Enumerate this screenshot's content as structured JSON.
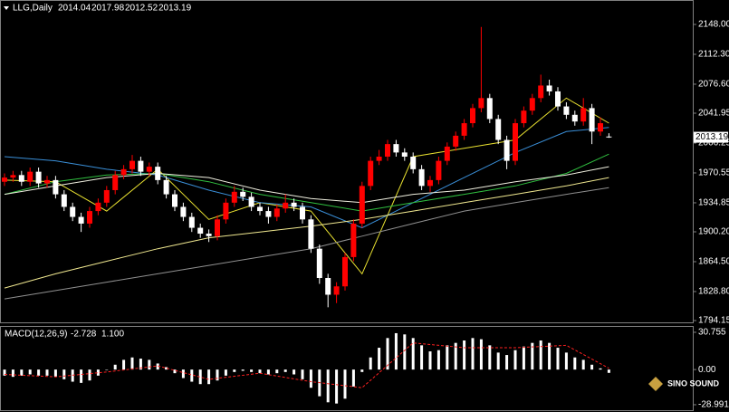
{
  "chart_data": [
    {
      "type": "candlestick",
      "title": "LLG,Daily",
      "up_color": "#ff0000",
      "down_color": "#ffffff",
      "open": [
        1960,
        1965,
        1968,
        1960,
        1972,
        1958,
        1962,
        1945,
        1930,
        1918,
        1910,
        1925,
        1935,
        1950,
        1968,
        1975,
        1985,
        1972,
        1978,
        1962,
        1945,
        1930,
        1918,
        1905,
        1898,
        1895,
        1915,
        1935,
        1948,
        1942,
        1930,
        1925,
        1918,
        1928,
        1935,
        1930,
        1915,
        1880,
        1845,
        1825,
        1835,
        1870,
        1910,
        1955,
        1985,
        1990,
        2005,
        1995,
        1990,
        1975,
        1955,
        1962,
        1985,
        2002,
        2015,
        2030,
        2048,
        2060,
        2035,
        2010,
        1985,
        2030,
        2045,
        2060,
        2075,
        2068,
        2050,
        2040,
        2032,
        2048,
        2020,
        2014.04
      ],
      "high": [
        1970,
        1973,
        1973,
        1977,
        1977,
        1967,
        1967,
        1950,
        1935,
        1923,
        1930,
        1940,
        1955,
        1973,
        1980,
        1992,
        1990,
        1983,
        1983,
        1967,
        1950,
        1935,
        1923,
        1910,
        1903,
        1920,
        1940,
        1955,
        1953,
        1947,
        1935,
        1930,
        1933,
        1945,
        1940,
        1935,
        1920,
        1885,
        1850,
        1840,
        1875,
        1915,
        1960,
        1990,
        1998,
        2010,
        2010,
        2000,
        1995,
        1980,
        1967,
        1990,
        2007,
        2020,
        2035,
        2053,
        2145,
        2065,
        2040,
        2015,
        2035,
        2050,
        2065,
        2088,
        2082,
        2073,
        2055,
        2045,
        2060,
        2053,
        2037,
        2017.98
      ],
      "low": [
        1955,
        1960,
        1955,
        1955,
        1953,
        1953,
        1940,
        1925,
        1913,
        1900,
        1905,
        1920,
        1930,
        1945,
        1963,
        1970,
        1967,
        1967,
        1957,
        1940,
        1925,
        1913,
        1900,
        1893,
        1888,
        1890,
        1910,
        1930,
        1937,
        1925,
        1920,
        1910,
        1913,
        1923,
        1925,
        1910,
        1875,
        1838,
        1810,
        1815,
        1830,
        1865,
        1905,
        1950,
        1980,
        1985,
        1990,
        1985,
        1970,
        1950,
        1948,
        1957,
        1980,
        1997,
        2010,
        2025,
        2043,
        2030,
        2005,
        1975,
        1980,
        2025,
        2040,
        2055,
        2063,
        2045,
        2035,
        2027,
        2027,
        2005,
        2015,
        2012.52
      ],
      "close": [
        1965,
        1968,
        1960,
        1972,
        1958,
        1962,
        1945,
        1930,
        1918,
        1910,
        1925,
        1935,
        1950,
        1968,
        1975,
        1985,
        1972,
        1978,
        1962,
        1945,
        1930,
        1918,
        1905,
        1898,
        1895,
        1915,
        1935,
        1948,
        1942,
        1930,
        1925,
        1918,
        1928,
        1935,
        1930,
        1915,
        1880,
        1845,
        1825,
        1835,
        1870,
        1910,
        1955,
        1985,
        1990,
        2005,
        1995,
        1990,
        1975,
        1955,
        1962,
        1985,
        2002,
        2015,
        2030,
        2048,
        2060,
        2035,
        2010,
        1985,
        2030,
        2045,
        2060,
        2075,
        2068,
        2050,
        2040,
        2032,
        2048,
        2020,
        2030,
        2013.19
      ],
      "ma_x": [
        0,
        6,
        12,
        18,
        24,
        30,
        36,
        42,
        48,
        54,
        60,
        66,
        71
      ],
      "ma_series": [
        {
          "color": "#e8e030",
          "values": [
            1962,
            1960,
            1925,
            1975,
            1915,
            1935,
            1925,
            1850,
            1990,
            2000,
            2010,
            2060,
            2030
          ]
        },
        {
          "color": "#3a8fd8",
          "values": [
            1990,
            1985,
            1975,
            1968,
            1950,
            1935,
            1930,
            1905,
            1935,
            1965,
            1995,
            2020,
            2025
          ]
        },
        {
          "color": "#30c040",
          "values": [
            1945,
            1960,
            1968,
            1970,
            1960,
            1945,
            1935,
            1925,
            1935,
            1945,
            1955,
            1970,
            1993
          ]
        },
        {
          "color": "#f0f0e0",
          "values": [
            1945,
            1955,
            1965,
            1970,
            1965,
            1950,
            1940,
            1935,
            1945,
            1950,
            1960,
            1968,
            1978
          ]
        },
        {
          "color": "#f0e890",
          "values": [
            1833,
            1850,
            1865,
            1880,
            1893,
            1900,
            1907,
            1915,
            1925,
            1935,
            1945,
            1955,
            1965
          ]
        },
        {
          "color": "#909090",
          "values": [
            1820,
            1830,
            1840,
            1850,
            1860,
            1870,
            1880,
            1895,
            1910,
            1925,
            1935,
            1945,
            1953
          ]
        }
      ],
      "ylim": [
        1790.9,
        2177.2
      ],
      "yticks": [
        {
          "value": 2148,
          "label": "2148.00"
        },
        {
          "value": 2112.3,
          "label": "2112.30"
        },
        {
          "value": 2076.6,
          "label": "2076.60"
        },
        2041.95,
        2006.25,
        1970.55,
        1934.85,
        {
          "value": 1900.2,
          "label": "1900.20"
        },
        {
          "value": 1864.5,
          "label": "1864.50"
        },
        {
          "value": 1828.8,
          "label": "1828.80"
        },
        1794.15
      ]
    },
    {
      "type": "macd",
      "title": "MACD(12,26,9)",
      "histogram_color": "#ffffff",
      "signal_color": "#ff2020",
      "values": [
        -5,
        -6,
        -5,
        -4,
        -5,
        -5,
        -6,
        -8,
        -10,
        -11,
        -9,
        -5,
        0,
        4,
        8,
        10,
        9,
        8,
        5,
        2,
        -3,
        -7,
        -10,
        -12,
        -12,
        -9,
        -5,
        -2,
        -1,
        -2,
        -3,
        -4,
        -3,
        -2,
        -4,
        -8,
        -15,
        -22,
        -27,
        -28,
        -24,
        -14,
        -2,
        10,
        18,
        26,
        30,
        29,
        26,
        20,
        15,
        16,
        20,
        22,
        24,
        26,
        25,
        20,
        14,
        12,
        16,
        19,
        22,
        24,
        22,
        18,
        14,
        10,
        8,
        4,
        1,
        -2.728
      ],
      "signal_x": [
        0,
        6,
        12,
        18,
        24,
        30,
        36,
        42,
        48,
        54,
        60,
        66,
        71
      ],
      "signal": [
        -4,
        -6,
        -2,
        3,
        -8,
        -3,
        -10,
        -15,
        22,
        18,
        18,
        20,
        1.1
      ],
      "signal_last_label": "1.100",
      "ylim": [
        -33.5,
        35.2
      ],
      "yticks": [
        30.755,
        {
          "value": 0,
          "label": "0.00"
        },
        -28.991
      ]
    }
  ],
  "logo": "SINO SOUND"
}
